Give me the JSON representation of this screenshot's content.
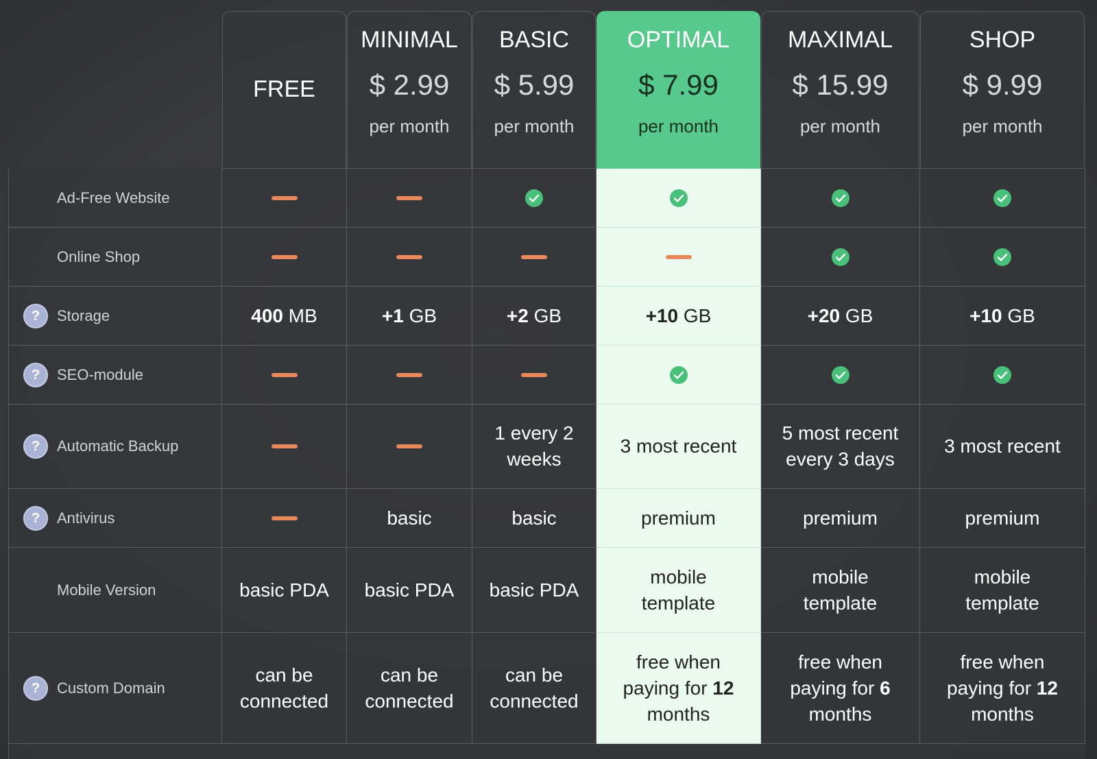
{
  "plans": [
    {
      "name": "FREE"
    },
    {
      "name": "MINIMAL",
      "price": "$ 2.99",
      "period": "per month"
    },
    {
      "name": "BASIC",
      "price": "$ 5.99",
      "period": "per month"
    },
    {
      "name": "OPTIMAL",
      "price": "$ 7.99",
      "period": "per month",
      "highlight": true
    },
    {
      "name": "MAXIMAL",
      "price": "$ 15.99",
      "period": "per month"
    },
    {
      "name": "SHOP",
      "price": "$ 9.99",
      "period": "per month"
    }
  ],
  "features": [
    {
      "label": "Ad-Free Website",
      "cells": [
        false,
        false,
        true,
        true,
        true,
        true
      ]
    },
    {
      "label": "Online Shop",
      "cells": [
        false,
        false,
        false,
        false,
        true,
        true
      ]
    },
    {
      "label": "Storage",
      "help": "?",
      "cells": [
        [
          {
            "text": "400",
            "bold": true
          },
          {
            "text": " MB"
          }
        ],
        [
          {
            "text": "+1",
            "bold": true
          },
          {
            "text": " GB"
          }
        ],
        [
          {
            "text": "+2",
            "bold": true
          },
          {
            "text": " GB"
          }
        ],
        [
          {
            "text": "+10",
            "bold": true
          },
          {
            "text": " GB"
          }
        ],
        [
          {
            "text": "+20",
            "bold": true
          },
          {
            "text": " GB"
          }
        ],
        [
          {
            "text": "+10",
            "bold": true
          },
          {
            "text": " GB"
          }
        ]
      ]
    },
    {
      "label": "SEO-module",
      "help": "?",
      "cells": [
        false,
        false,
        false,
        true,
        true,
        true
      ]
    },
    {
      "label": "Automatic Backup",
      "help": "?",
      "cells": [
        false,
        false,
        "1 every 2 weeks",
        "3 most recent",
        "5 most recent every 3 days",
        "3 most recent"
      ]
    },
    {
      "label": "Antivirus",
      "help": "?",
      "cells": [
        false,
        "basic",
        "basic",
        "premium",
        "premium",
        "premium"
      ]
    },
    {
      "label": "Mobile Version",
      "cells": [
        "basic PDA",
        "basic PDA",
        "basic PDA",
        "mobile template",
        "mobile template",
        "mobile template"
      ]
    },
    {
      "label": "Custom Domain",
      "help": "?",
      "cells": [
        "can be connected",
        "can be connected",
        "can be connected",
        [
          {
            "text": "free when paying for "
          },
          {
            "text": "12",
            "bold": true
          },
          {
            "text": " months"
          }
        ],
        [
          {
            "text": "free when paying for "
          },
          {
            "text": "6",
            "bold": true
          },
          {
            "text": " months"
          }
        ],
        [
          {
            "text": "free when paying for "
          },
          {
            "text": "12",
            "bold": true
          },
          {
            "text": " months"
          }
        ]
      ]
    }
  ]
}
